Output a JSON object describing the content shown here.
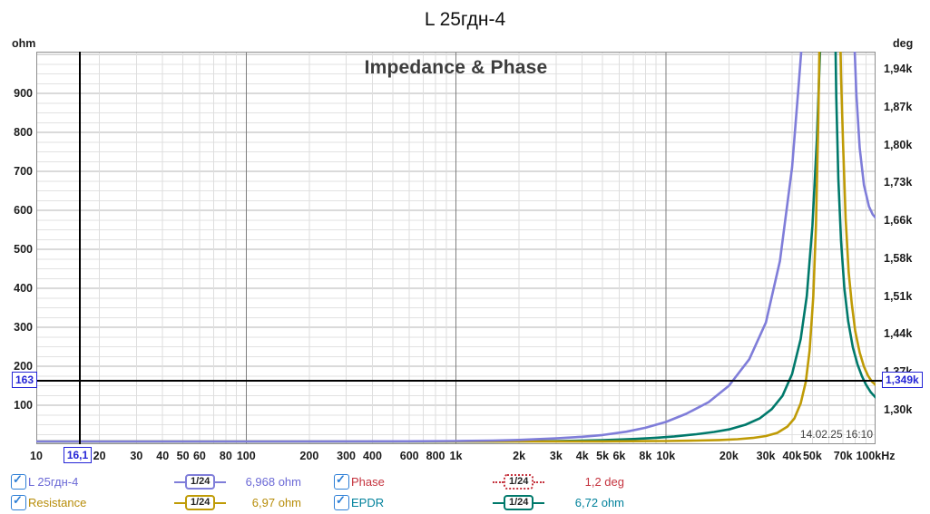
{
  "title": "L 25гдн-4",
  "chart": {
    "heading": "Impedance & Phase",
    "timestamp": "14.02.25 16:10",
    "left_axis": {
      "unit": "ohm",
      "ticks": [
        {
          "label": "900",
          "v": 900
        },
        {
          "label": "800",
          "v": 800
        },
        {
          "label": "700",
          "v": 700
        },
        {
          "label": "600",
          "v": 600
        },
        {
          "label": "500",
          "v": 500
        },
        {
          "label": "400",
          "v": 400
        },
        {
          "label": "300",
          "v": 300
        },
        {
          "label": "200",
          "v": 200
        },
        {
          "label": "100",
          "v": 100
        }
      ]
    },
    "right_axis": {
      "unit": "deg",
      "tick_labels": [
        "1,94k",
        "1,87k",
        "1,80k",
        "1,73k",
        "1,66k",
        "1,58k",
        "1,51k",
        "1,44k",
        "1,37k",
        "1,30k"
      ]
    },
    "x_axis": {
      "ticks": [
        {
          "label": "10",
          "f": 10
        },
        {
          "label": "20",
          "f": 20
        },
        {
          "label": "30",
          "f": 30
        },
        {
          "label": "40",
          "f": 40
        },
        {
          "label": "50",
          "f": 50
        },
        {
          "label": "60",
          "f": 60
        },
        {
          "label": "80",
          "f": 80
        },
        {
          "label": "100",
          "f": 100
        },
        {
          "label": "200",
          "f": 200
        },
        {
          "label": "300",
          "f": 300
        },
        {
          "label": "400",
          "f": 400
        },
        {
          "label": "600",
          "f": 600
        },
        {
          "label": "800",
          "f": 800
        },
        {
          "label": "1k",
          "f": 1000
        },
        {
          "label": "2k",
          "f": 2000
        },
        {
          "label": "3k",
          "f": 3000
        },
        {
          "label": "4k",
          "f": 4000
        },
        {
          "label": "5k",
          "f": 5000
        },
        {
          "label": "6k",
          "f": 6000
        },
        {
          "label": "8k",
          "f": 8000
        },
        {
          "label": "10k",
          "f": 10000
        },
        {
          "label": "20k",
          "f": 20000
        },
        {
          "label": "30k",
          "f": 30000
        },
        {
          "label": "40k",
          "f": 40000
        },
        {
          "label": "50k",
          "f": 50000
        },
        {
          "label": "70k",
          "f": 70000
        },
        {
          "label": "100kHz",
          "f": 100000
        }
      ]
    },
    "cursor": {
      "freq_hz": 16.1,
      "freq_label": "16,1",
      "left_value_ohm": 163,
      "left_label": "163",
      "right_label": "1,349k"
    }
  },
  "chart_data": {
    "type": "line",
    "x_scale": "log",
    "x_range_hz": [
      10,
      100000
    ],
    "y_left": {
      "label": "ohm",
      "range": [
        0,
        1007
      ],
      "major_step": 100,
      "minor_step": 25
    },
    "y_right": {
      "label": "deg",
      "tick_labels": [
        "1,94k",
        "1,87k",
        "1,80k",
        "1,73k",
        "1,66k",
        "1,58k",
        "1,51k",
        "1,44k",
        "1,37k",
        "1,30k"
      ]
    },
    "grid": true,
    "series": [
      {
        "name": "EPDR",
        "axis": "left",
        "unit": "ohm",
        "color": "#00796b",
        "cursor_value": "6,72 ohm",
        "points": [
          [
            10,
            6.72
          ],
          [
            500,
            6.8
          ],
          [
            1500,
            7.1
          ],
          [
            3000,
            8
          ],
          [
            5000,
            10.3
          ],
          [
            7000,
            13.2
          ],
          [
            9000,
            16.5
          ],
          [
            11000,
            20
          ],
          [
            14000,
            25.5
          ],
          [
            17000,
            31.5
          ],
          [
            20000,
            38
          ],
          [
            24000,
            50
          ],
          [
            28000,
            66
          ],
          [
            32000,
            90
          ],
          [
            36000,
            124
          ],
          [
            40000,
            180
          ],
          [
            44000,
            270
          ],
          [
            47000,
            380
          ],
          [
            50000,
            560
          ],
          [
            52500,
            780
          ],
          [
            54500,
            1020
          ],
          [
            56000,
            1400
          ],
          [
            57500,
            2400
          ],
          [
            59000,
            5200
          ],
          [
            60000,
            8000
          ],
          [
            61000,
            5400
          ],
          [
            62300,
            2600
          ],
          [
            63300,
            1500
          ],
          [
            64200,
            1080
          ],
          [
            65000,
            890
          ],
          [
            66500,
            680
          ],
          [
            68500,
            520
          ],
          [
            71000,
            400
          ],
          [
            74000,
            316
          ],
          [
            78000,
            248
          ],
          [
            82000,
            205
          ],
          [
            86000,
            175
          ],
          [
            90000,
            153
          ],
          [
            95000,
            133
          ],
          [
            100000,
            120
          ]
        ]
      },
      {
        "name": "Resistance",
        "axis": "left",
        "unit": "ohm",
        "color": "#bf9b06",
        "cursor_value": "6,97 ohm",
        "points": [
          [
            10,
            6.97
          ],
          [
            500,
            6.98
          ],
          [
            2000,
            7.05
          ],
          [
            5000,
            7.3
          ],
          [
            8000,
            7.8
          ],
          [
            10000,
            8.2
          ],
          [
            14000,
            9.4
          ],
          [
            18000,
            10.8
          ],
          [
            22000,
            12.8
          ],
          [
            26000,
            16
          ],
          [
            30000,
            21
          ],
          [
            34000,
            29
          ],
          [
            38000,
            45
          ],
          [
            41000,
            66
          ],
          [
            44000,
            105
          ],
          [
            46500,
            160
          ],
          [
            48500,
            240
          ],
          [
            50500,
            380
          ],
          [
            52000,
            560
          ],
          [
            53300,
            820
          ],
          [
            54300,
            1100
          ],
          [
            55500,
            1800
          ],
          [
            57000,
            4000
          ],
          [
            58500,
            9000
          ],
          [
            60000,
            16000
          ],
          [
            61500,
            9500
          ],
          [
            63000,
            4500
          ],
          [
            64500,
            2400
          ],
          [
            66000,
            1500
          ],
          [
            67500,
            1120
          ],
          [
            68500,
            940
          ],
          [
            70000,
            770
          ],
          [
            72000,
            580
          ],
          [
            74500,
            440
          ],
          [
            77000,
            360
          ],
          [
            80000,
            290
          ],
          [
            84000,
            235
          ],
          [
            88000,
            199
          ],
          [
            92000,
            176
          ],
          [
            96000,
            161
          ],
          [
            100000,
            152
          ]
        ]
      },
      {
        "name": "L 25гдн-4",
        "axis": "left",
        "unit": "ohm",
        "color": "#7f7dd9",
        "cursor_value": "6,968 ohm",
        "points": [
          [
            10,
            6.97
          ],
          [
            30,
            6.97
          ],
          [
            100,
            6.97
          ],
          [
            300,
            7.1
          ],
          [
            600,
            7.5
          ],
          [
            1000,
            8.1
          ],
          [
            1500,
            9.4
          ],
          [
            2000,
            11
          ],
          [
            3000,
            14.8
          ],
          [
            4000,
            19
          ],
          [
            5000,
            23.5
          ],
          [
            6500,
            32
          ],
          [
            8000,
            42
          ],
          [
            10000,
            57
          ],
          [
            12500,
            78
          ],
          [
            16000,
            108
          ],
          [
            20000,
            150
          ],
          [
            25000,
            218
          ],
          [
            30000,
            312
          ],
          [
            35000,
            470
          ],
          [
            40000,
            710
          ],
          [
            43000,
            920
          ],
          [
            45000,
            1060
          ],
          [
            47000,
            1350
          ],
          [
            50000,
            2300
          ],
          [
            54000,
            5500
          ],
          [
            58000,
            16000
          ],
          [
            60000,
            25000
          ],
          [
            62000,
            16000
          ],
          [
            66000,
            5800
          ],
          [
            70000,
            2700
          ],
          [
            74000,
            1650
          ],
          [
            77000,
            1280
          ],
          [
            79500,
            1010
          ],
          [
            81000,
            900
          ],
          [
            84000,
            760
          ],
          [
            88000,
            665
          ],
          [
            93000,
            610
          ],
          [
            97000,
            589
          ],
          [
            100000,
            581
          ]
        ]
      },
      {
        "name": "Phase",
        "axis": "right",
        "unit": "deg",
        "color": "#c5333e",
        "cursor_value": "1,2 deg",
        "visible_in_plot": false,
        "points": []
      }
    ]
  },
  "legend": {
    "entries": [
      {
        "label": "L 25гдн-4",
        "checked": true,
        "check": "✓",
        "smoothing": "1/24",
        "value": "6,968 ohm",
        "text_color": "#6b69d6",
        "badge_color": "#7f7dd9",
        "badge_style": "solid"
      },
      {
        "label": "Phase",
        "checked": true,
        "check": "✓",
        "smoothing": "1/24",
        "value": "1,2 deg",
        "text_color": "#c5333e",
        "badge_color": "#c5333e",
        "badge_style": "dotted"
      },
      {
        "label": "Resistance",
        "checked": true,
        "check": "✓",
        "smoothing": "1/24",
        "value": "6,97 ohm",
        "text_color": "#b78c08",
        "badge_color": "#bf9b06",
        "badge_style": "solid"
      },
      {
        "label": "EPDR",
        "checked": true,
        "check": "✓",
        "smoothing": "1/24",
        "value": "6,72 ohm",
        "text_color": "#00819b",
        "badge_color": "#00796b",
        "badge_style": "solid"
      }
    ]
  }
}
